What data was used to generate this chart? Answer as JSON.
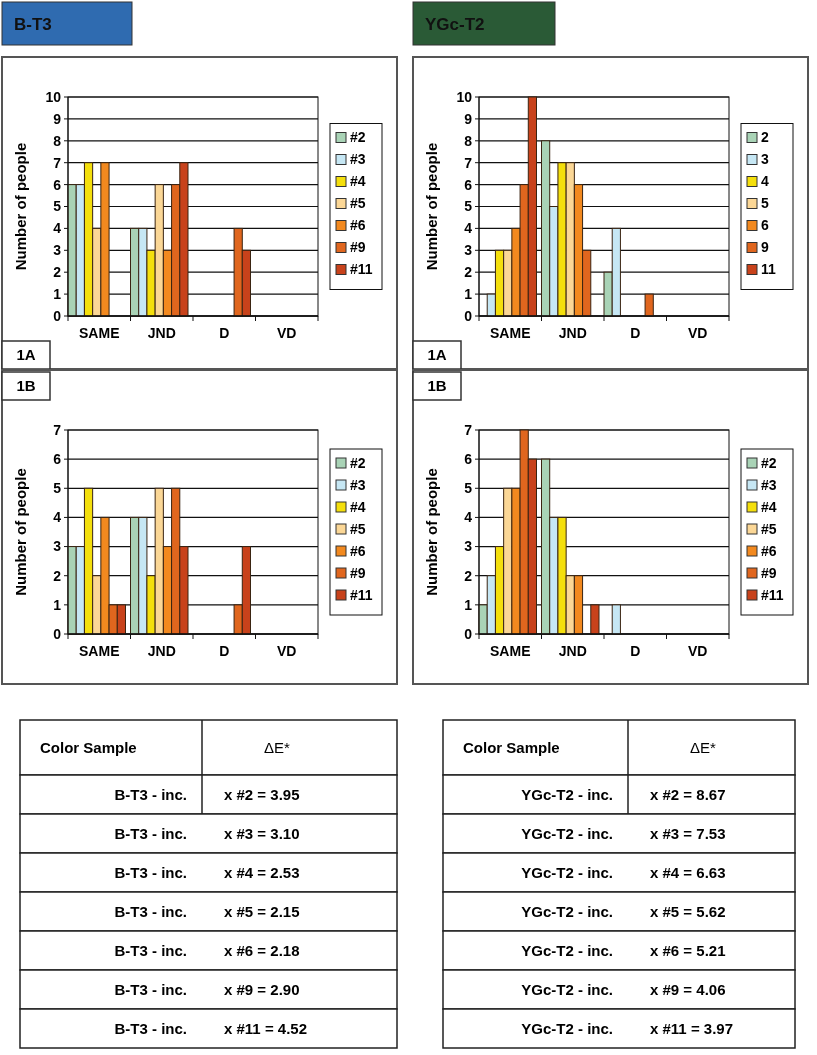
{
  "chart_data": [
    {
      "type": "bar",
      "title": "B-T3",
      "subtitle": "1A",
      "ylabel": "Number of people",
      "categories": [
        "SAME",
        "JND",
        "D",
        "VD"
      ],
      "ylim": [
        0,
        10
      ],
      "yticks": [
        0,
        1,
        2,
        3,
        4,
        5,
        6,
        7,
        8,
        9,
        10
      ],
      "grid": "y",
      "legend": "right",
      "series": [
        {
          "name": "#2",
          "color": "#a9d3b6",
          "values": [
            6,
            4,
            0,
            0
          ]
        },
        {
          "name": "#3",
          "color": "#c6e7f4",
          "values": [
            6,
            4,
            0,
            0
          ]
        },
        {
          "name": "#4",
          "color": "#f4df0c",
          "values": [
            7,
            3,
            0,
            0
          ]
        },
        {
          "name": "#5",
          "color": "#fbd796",
          "values": [
            4,
            6,
            0,
            0
          ]
        },
        {
          "name": "#6",
          "color": "#f2891f",
          "values": [
            7,
            3,
            0,
            0
          ]
        },
        {
          "name": "#9",
          "color": "#e0661e",
          "values": [
            0,
            6,
            4,
            0
          ]
        },
        {
          "name": "#11",
          "color": "#c8421b",
          "values": [
            0,
            7,
            3,
            0
          ]
        }
      ]
    },
    {
      "type": "bar",
      "title": "YGc-T2",
      "subtitle": "1A",
      "ylabel": "Number of people",
      "categories": [
        "SAME",
        "JND",
        "D",
        "VD"
      ],
      "ylim": [
        0,
        10
      ],
      "yticks": [
        0,
        1,
        2,
        3,
        4,
        5,
        6,
        7,
        8,
        9,
        10
      ],
      "grid": "y",
      "legend": "right",
      "series": [
        {
          "name": "2",
          "color": "#a9d3b6",
          "values": [
            0,
            8,
            2,
            0
          ]
        },
        {
          "name": "3",
          "color": "#c6e7f4",
          "values": [
            1,
            5,
            4,
            0
          ]
        },
        {
          "name": "4",
          "color": "#f4df0c",
          "values": [
            3,
            7,
            0,
            0
          ]
        },
        {
          "name": "5",
          "color": "#fbd796",
          "values": [
            3,
            7,
            0,
            0
          ]
        },
        {
          "name": "6",
          "color": "#f2891f",
          "values": [
            4,
            6,
            0,
            0
          ]
        },
        {
          "name": "9",
          "color": "#e0661e",
          "values": [
            6,
            3,
            1,
            0
          ]
        },
        {
          "name": "11",
          "color": "#c8421b",
          "values": [
            10,
            0,
            0,
            0
          ]
        }
      ]
    },
    {
      "type": "bar",
      "subtitle": "1B",
      "ylabel": "Number of people",
      "categories": [
        "SAME",
        "JND",
        "D",
        "VD"
      ],
      "ylim": [
        0,
        7
      ],
      "yticks": [
        0,
        1,
        2,
        3,
        4,
        5,
        6,
        7
      ],
      "grid": "y",
      "legend": "right",
      "series": [
        {
          "name": "#2",
          "color": "#a9d3b6",
          "values": [
            3,
            4,
            0,
            0
          ]
        },
        {
          "name": "#3",
          "color": "#c6e7f4",
          "values": [
            3,
            4,
            0,
            0
          ]
        },
        {
          "name": "#4",
          "color": "#f4df0c",
          "values": [
            5,
            2,
            0,
            0
          ]
        },
        {
          "name": "#5",
          "color": "#fbd796",
          "values": [
            2,
            5,
            0,
            0
          ]
        },
        {
          "name": "#6",
          "color": "#f2891f",
          "values": [
            4,
            3,
            0,
            0
          ]
        },
        {
          "name": "#9",
          "color": "#e0661e",
          "values": [
            1,
            5,
            1,
            0
          ]
        },
        {
          "name": "#11",
          "color": "#c8421b",
          "values": [
            1,
            3,
            3,
            0
          ]
        }
      ]
    },
    {
      "type": "bar",
      "subtitle": "1B",
      "ylabel": "Number of people",
      "categories": [
        "SAME",
        "JND",
        "D",
        "VD"
      ],
      "ylim": [
        0,
        7
      ],
      "yticks": [
        0,
        1,
        2,
        3,
        4,
        5,
        6,
        7
      ],
      "grid": "y",
      "legend": "right",
      "series": [
        {
          "name": "#2",
          "color": "#a9d3b6",
          "values": [
            1,
            6,
            0,
            0
          ]
        },
        {
          "name": "#3",
          "color": "#c6e7f4",
          "values": [
            2,
            4,
            1,
            0
          ]
        },
        {
          "name": "#4",
          "color": "#f4df0c",
          "values": [
            3,
            4,
            0,
            0
          ]
        },
        {
          "name": "#5",
          "color": "#fbd796",
          "values": [
            5,
            2,
            0,
            0
          ]
        },
        {
          "name": "#6",
          "color": "#f2891f",
          "values": [
            5,
            2,
            0,
            0
          ]
        },
        {
          "name": "#9",
          "color": "#e0661e",
          "values": [
            7,
            0,
            0,
            0
          ]
        },
        {
          "name": "#11",
          "color": "#c8421b",
          "values": [
            6,
            1,
            0,
            0
          ]
        }
      ]
    },
    {
      "type": "other",
      "annotations": [
        "Color Sample",
        "ΔE*",
        "B-T3 - inc.",
        "x #2 = 3.95",
        "B-T3 - inc.",
        "x #3 = 3.10",
        "B-T3 - inc.",
        "x #4 = 2.53",
        "B-T3 - inc.",
        "x #5 = 2.15",
        "B-T3 - inc.",
        "x #6 = 2.18",
        "B-T3 - inc.",
        "x #9 = 2.90",
        "B-T3 - inc.",
        "x #11 = 4.52"
      ]
    },
    {
      "type": "other",
      "annotations": [
        "Color Sample",
        "ΔE*",
        "YGc-T2 - inc.",
        "x #2 = 8.67",
        "YGc-T2 - inc.",
        "x #3 = 7.53",
        "YGc-T2 - inc.",
        "x #4 = 6.63",
        "YGc-T2 - inc.",
        "x #5 = 5.62",
        "YGc-T2 - inc.",
        "x #6 = 5.21",
        "YGc-T2 - inc.",
        "x #9 = 4.06",
        "YGc-T2 - inc.",
        "x #11 = 3.97"
      ]
    }
  ]
}
